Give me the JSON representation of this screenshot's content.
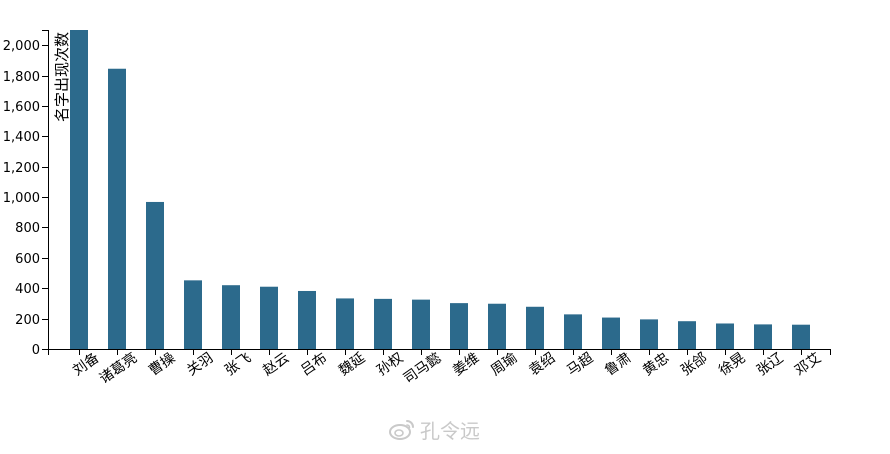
{
  "chart_data": {
    "type": "bar",
    "title": "",
    "xlabel": "",
    "ylabel": "名字出现次数",
    "categories": [
      "刘备",
      "诸葛亮",
      "曹操",
      "关羽",
      "张飞",
      "赵云",
      "吕布",
      "魏延",
      "孙权",
      "司马懿",
      "姜维",
      "周瑜",
      "袁绍",
      "马超",
      "鲁肃",
      "黄忠",
      "张郃",
      "徐晃",
      "张辽",
      "邓艾"
    ],
    "values": [
      2100,
      1845,
      968,
      452,
      420,
      410,
      382,
      333,
      330,
      325,
      302,
      298,
      278,
      228,
      207,
      195,
      183,
      168,
      162,
      160
    ],
    "ylim": [
      0,
      2100
    ],
    "yticks": [
      0,
      200,
      400,
      600,
      800,
      1000,
      1200,
      1400,
      1600,
      1800,
      2000
    ],
    "ytick_labels": [
      "0",
      "200",
      "400",
      "600",
      "800",
      "1,000",
      "1,200",
      "1,400",
      "1,600",
      "1,800",
      "2,000"
    ],
    "grid": false,
    "bar_color": "#2c6a8c"
  },
  "watermark": {
    "icon": "weibo-icon",
    "text": "孔令远"
  }
}
